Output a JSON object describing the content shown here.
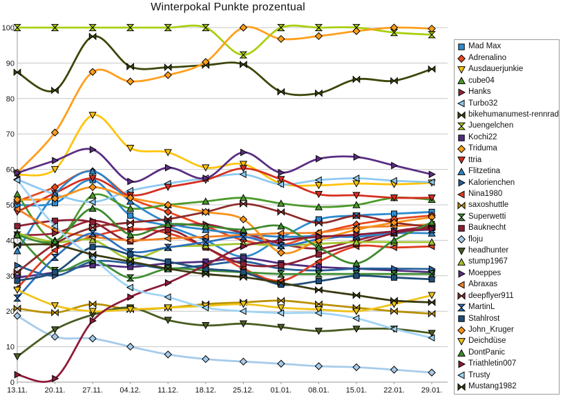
{
  "chart_data": {
    "type": "line",
    "title": "Winterpokal Punkte prozentual",
    "categories": [
      "13.11.",
      "20.11.",
      "27.11.",
      "04.12.",
      "11.12.",
      "18.12.",
      "25.12.",
      "01.01.",
      "08.01.",
      "15.01.",
      "22.01.",
      "29.01."
    ],
    "xlabel": "",
    "ylabel": "",
    "ylim": [
      0,
      100
    ],
    "yticks": [
      0,
      10,
      20,
      30,
      40,
      50,
      60,
      70,
      80,
      90,
      100
    ],
    "grid": true,
    "grid_color": "#c6c6c6",
    "axis_color": "#9a9a9a",
    "legend_position": "right",
    "line_smoothing": true,
    "series": [
      {
        "name": "Mad Max",
        "color": "#2e8bd0",
        "marker": "square",
        "values": [
          50,
          50.5,
          57,
          47,
          44,
          40,
          35.4,
          40.7,
          45.9,
          47,
          47.5,
          48
        ]
      },
      {
        "name": "Adrenalino",
        "color": "#e8481f",
        "marker": "diamond",
        "values": [
          51,
          55,
          59.5,
          52,
          48,
          44,
          40,
          38.7,
          42,
          44.5,
          46,
          47
        ]
      },
      {
        "name": "Ausdauerjunkie",
        "color": "#ffc40c",
        "marker": "triangle-down",
        "values": [
          58.5,
          60,
          75.3,
          66,
          64.8,
          60.5,
          61.5,
          56,
          55.5,
          56,
          55.8,
          56.2
        ]
      },
      {
        "name": "cube04",
        "color": "#4c9a2a",
        "marker": "triangle-up",
        "values": [
          53,
          40,
          52.7,
          49,
          50,
          51,
          52,
          50.4,
          49.4,
          50,
          52,
          51.5
        ]
      },
      {
        "name": "Hanks",
        "color": "#9a2239",
        "marker": "triangle-right",
        "values": [
          41.5,
          42,
          45.5,
          43,
          44,
          44.5,
          42,
          39,
          37.7,
          40,
          42.5,
          44
        ]
      },
      {
        "name": "Turbo32",
        "color": "#8ec9f0",
        "marker": "triangle-left",
        "values": [
          57.2,
          53,
          50.8,
          54,
          56,
          57.5,
          58.6,
          55.8,
          57,
          57.5,
          56.8,
          56.4
        ]
      },
      {
        "name": "bikehumanumest-rennrad",
        "color": "#3d4509",
        "marker": "bowtie-h",
        "values": [
          87.4,
          82.3,
          97.5,
          89,
          88.8,
          89.4,
          89.6,
          81.9,
          81.5,
          85.4,
          85,
          88.3
        ]
      },
      {
        "name": "Juengelchen",
        "color": "#a9cf0e",
        "marker": "bowtie-v",
        "values": [
          100,
          100,
          100,
          100,
          100,
          100,
          92.3,
          100,
          100,
          100,
          98.6,
          98
        ]
      },
      {
        "name": "Kochi22",
        "color": "#4f2d7f",
        "marker": "square",
        "values": [
          29.5,
          31,
          33,
          32.5,
          33.5,
          34,
          35,
          33.5,
          32.5,
          32,
          31.5,
          31
        ]
      },
      {
        "name": "Triduma",
        "color": "#ff9e1b",
        "marker": "diamond",
        "values": [
          59.1,
          70.4,
          87.5,
          84.8,
          86.6,
          90.3,
          100,
          96.8,
          97.6,
          99,
          100,
          99.7
        ]
      },
      {
        "name": "ttria",
        "color": "#d62e1f",
        "marker": "triangle-down",
        "values": [
          48,
          53.3,
          57.5,
          52.7,
          55,
          57,
          60.3,
          57.2,
          53,
          52.7,
          52,
          52
        ]
      },
      {
        "name": "Flitzetina",
        "color": "#2e86c8",
        "marker": "triangle-up",
        "values": [
          37,
          53,
          59.5,
          51,
          45,
          43,
          41.8,
          41,
          41.2,
          41,
          42,
          42
        ]
      },
      {
        "name": "Kalorienchen",
        "color": "#27609a",
        "marker": "triangle-right",
        "values": [
          32.9,
          30,
          34,
          33.5,
          32,
          33,
          34,
          32,
          31.5,
          32,
          32,
          31.9
        ]
      },
      {
        "name": "Nina1980",
        "color": "#e03c20",
        "marker": "triangle-left",
        "values": [
          26.5,
          37.2,
          41,
          43.2,
          42,
          38,
          32,
          28.6,
          34,
          38.3,
          38,
          38.3
        ]
      },
      {
        "name": "saxoshuttle",
        "color": "#b99000",
        "marker": "bowtie-h",
        "values": [
          20.8,
          19.6,
          22,
          20.5,
          21,
          22,
          22.5,
          23,
          22,
          21,
          20,
          19.3
        ]
      },
      {
        "name": "Superwetti",
        "color": "#418f35",
        "marker": "bowtie-v",
        "values": [
          41.5,
          31.5,
          34.4,
          29.4,
          32,
          31.5,
          31,
          30.5,
          30.5,
          30.5,
          30.5,
          30.5
        ]
      },
      {
        "name": "Bauknecht",
        "color": "#8e1f33",
        "marker": "square",
        "values": [
          44,
          45.5,
          45.1,
          39.7,
          43,
          38,
          33.3,
          33,
          36,
          39,
          42,
          43.5
        ]
      },
      {
        "name": "floju",
        "color": "#a6cbea",
        "marker": "diamond",
        "values": [
          18.7,
          12.8,
          12.3,
          10,
          7.8,
          6.5,
          5.8,
          5.2,
          4.5,
          4.2,
          3.5,
          2.7
        ]
      },
      {
        "name": "headhunter",
        "color": "#4a5d23",
        "marker": "triangle-down",
        "values": [
          7.2,
          14.8,
          19,
          21,
          17.5,
          16,
          16.5,
          15.5,
          14.4,
          15,
          15,
          13.8
        ]
      },
      {
        "name": "stump1967",
        "color": "#a3c42c",
        "marker": "triangle-up",
        "values": [
          42,
          39.5,
          40.1,
          34.8,
          38,
          38.5,
          39,
          38.5,
          39,
          39.5,
          39.5,
          39.5
        ]
      },
      {
        "name": "Moeppes",
        "color": "#5a2d82",
        "marker": "triangle-right",
        "values": [
          59,
          62.5,
          65.6,
          56.6,
          60.5,
          57.5,
          64.8,
          59.1,
          63,
          63.5,
          61.1,
          58.6
        ]
      },
      {
        "name": "Abraxas",
        "color": "#f28024",
        "marker": "triangle-left",
        "values": [
          48.8,
          43,
          41,
          40,
          40.5,
          41,
          41.5,
          42,
          42.2,
          43.6,
          44,
          44.5
        ]
      },
      {
        "name": "deepflyer911",
        "color": "#8e2b2b",
        "marker": "bowtie-h",
        "values": [
          31,
          39,
          43.6,
          45,
          46,
          48,
          50.3,
          48,
          44.9,
          46.9,
          45,
          43.8
        ]
      },
      {
        "name": "MartinL",
        "color": "#2d6fbf",
        "marker": "bowtie-v",
        "values": [
          23.7,
          35.2,
          42,
          36.8,
          38,
          39.5,
          41,
          38.5,
          40.3,
          41.5,
          42.5,
          43
        ]
      },
      {
        "name": "Stahlrost",
        "color": "#1f4e79",
        "marker": "square",
        "values": [
          28.6,
          31,
          38.1,
          36,
          34,
          32,
          31,
          27.5,
          28.5,
          30,
          29.5,
          29
        ]
      },
      {
        "name": "John_Kruger",
        "color": "#f79219",
        "marker": "diamond",
        "values": [
          51.5,
          51.8,
          55,
          52,
          50,
          48,
          45.9,
          36.5,
          40,
          43,
          45,
          46.5
        ]
      },
      {
        "name": "Deichdüse",
        "color": "#efc319",
        "marker": "triangle-down",
        "values": [
          26,
          21.6,
          20,
          20.5,
          21,
          21.5,
          22,
          21,
          20.5,
          20,
          22,
          24.5
        ]
      },
      {
        "name": "DontPanic",
        "color": "#3e8a2e",
        "marker": "triangle-up",
        "values": [
          41.5,
          39.7,
          49,
          41.6,
          44.5,
          44,
          43,
          44,
          38,
          33.5,
          40,
          45.1
        ]
      },
      {
        "name": "Triathletin007",
        "color": "#8e1b38",
        "marker": "triangle-right",
        "values": [
          2.1,
          1,
          17.3,
          24,
          28,
          33,
          38.3,
          40,
          41,
          41.6,
          42.5,
          43.2
        ]
      },
      {
        "name": "Trusty",
        "color": "#9fd4f5",
        "marker": "triangle-left",
        "values": [
          57,
          44,
          35,
          26.7,
          24,
          21,
          20,
          19.5,
          19.5,
          18,
          15,
          12.5
        ]
      },
      {
        "name": "Mustang1982",
        "color": "#3a3a10",
        "marker": "bowtie-h",
        "values": [
          38.7,
          38.7,
          36,
          34,
          32,
          30.5,
          29.6,
          28,
          26,
          24.5,
          23,
          22.5
        ]
      }
    ]
  }
}
